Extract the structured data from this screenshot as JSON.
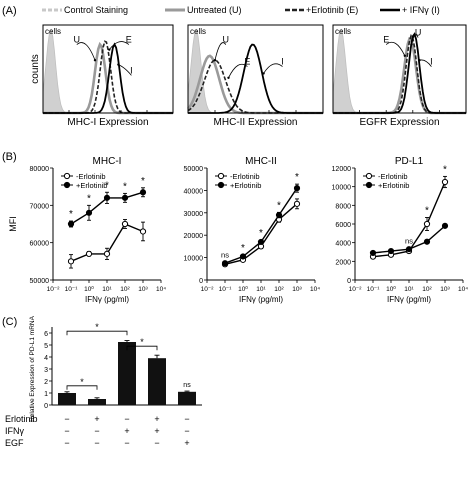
{
  "panel_labels": {
    "a": "(A)",
    "b": "(B)",
    "c": "(C)"
  },
  "legend_a": {
    "control": "Control Staining",
    "untreated": "Untreated (U)",
    "erlotinib": "+Erlotinib (E)",
    "ifng": "+ IFNγ (I)"
  },
  "colors": {
    "control_fill": "#d0d0d0",
    "untreated": "#9a9a9a",
    "erlotinib": "#222222",
    "ifng": "#000000",
    "bar": "#111111"
  },
  "chart_data": [
    {
      "type": "area",
      "panel": "A1",
      "xlabel": "MHC-I Expression",
      "ylabel": "counts",
      "tag": "cells",
      "log_decades": 5,
      "series": [
        {
          "name": "Control Staining",
          "key": "control",
          "peak_log": 0.3,
          "width": 0.18,
          "height": 0.95
        },
        {
          "name": "Untreated (U)",
          "key": "untreated",
          "peak_log": 2.2,
          "width": 0.2,
          "height": 0.78
        },
        {
          "name": "+Erlotinib (E)",
          "key": "erlotinib",
          "peak_log": 2.4,
          "width": 0.2,
          "height": 0.82
        },
        {
          "name": "+ IFNγ (I)",
          "key": "ifng",
          "peak_log": 2.75,
          "width": 0.2,
          "height": 0.78
        }
      ],
      "annotations": [
        {
          "text": "U",
          "x_log": 1.3,
          "y": 0.8,
          "arrow_x_log": 2.0,
          "arrow_y": 0.6
        },
        {
          "text": "E",
          "x_log": 3.3,
          "y": 0.8,
          "arrow_x_log": 2.55,
          "arrow_y": 0.72
        },
        {
          "text": "I",
          "x_log": 3.4,
          "y": 0.45,
          "arrow_x_log": 2.9,
          "arrow_y": 0.55
        }
      ]
    },
    {
      "type": "area",
      "panel": "A2",
      "xlabel": "MHC-II Expression",
      "tag": "cells",
      "log_decades": 5,
      "series": [
        {
          "name": "Control Staining",
          "key": "control",
          "peak_log": 0.3,
          "width": 0.18,
          "height": 0.95
        },
        {
          "name": "Untreated (U)",
          "key": "untreated",
          "peak_log": 0.8,
          "width": 0.35,
          "height": 0.65
        },
        {
          "name": "+Erlotinib (E)",
          "key": "erlotinib",
          "peak_log": 1.0,
          "width": 0.4,
          "height": 0.6
        },
        {
          "name": "+ IFNγ (I)",
          "key": "ifng",
          "peak_log": 2.4,
          "width": 0.33,
          "height": 0.78
        }
      ],
      "annotations": [
        {
          "text": "U",
          "x_log": 1.4,
          "y": 0.8,
          "arrow_x_log": 1.0,
          "arrow_y": 0.6
        },
        {
          "text": "E",
          "x_log": 2.2,
          "y": 0.55,
          "arrow_x_log": 1.5,
          "arrow_y": 0.4
        },
        {
          "text": "I",
          "x_log": 3.5,
          "y": 0.55,
          "arrow_x_log": 2.8,
          "arrow_y": 0.45
        }
      ]
    },
    {
      "type": "area",
      "panel": "A3",
      "xlabel": "EGFR Expression",
      "tag": "cells",
      "log_decades": 5,
      "series": [
        {
          "name": "Control Staining",
          "key": "control",
          "peak_log": 0.3,
          "width": 0.18,
          "height": 0.95
        },
        {
          "name": "Untreated (U)",
          "key": "untreated",
          "peak_log": 2.9,
          "width": 0.22,
          "height": 0.85
        },
        {
          "name": "+Erlotinib (E)",
          "key": "erlotinib",
          "peak_log": 2.95,
          "width": 0.2,
          "height": 0.88
        },
        {
          "name": "+ IFNγ (I)",
          "key": "ifng",
          "peak_log": 3.05,
          "width": 0.2,
          "height": 0.9
        }
      ],
      "annotations": [
        {
          "text": "E",
          "x_log": 2.0,
          "y": 0.8,
          "arrow_x_log": 2.7,
          "arrow_y": 0.65
        },
        {
          "text": "U",
          "x_log": 3.2,
          "y": 0.88,
          "arrow_x_log": 2.95,
          "arrow_y": 0.78
        },
        {
          "text": "I",
          "x_log": 3.7,
          "y": 0.55,
          "arrow_x_log": 3.25,
          "arrow_y": 0.6
        }
      ]
    },
    {
      "type": "line",
      "panel": "B1",
      "title": "MHC-I",
      "xlabel": "IFNγ (pg/ml)",
      "ylabel": "MFI",
      "xscale": "log",
      "x_ticks": [
        "10⁻²",
        "10⁻¹",
        "10⁰",
        "10¹",
        "10²",
        "10³",
        "10⁴"
      ],
      "xlim_exp": [
        -2,
        4
      ],
      "ylim": [
        50000,
        80000
      ],
      "y_ticks": [
        "50000",
        "60000",
        "70000",
        "80000"
      ],
      "x_exp": [
        -1,
        0,
        1,
        2,
        3
      ],
      "series": [
        {
          "name": "-Erlotinib",
          "marker": "open",
          "values": [
            55000,
            57000,
            57000,
            65000,
            63000
          ],
          "err": [
            1800,
            600,
            1500,
            1200,
            2500
          ]
        },
        {
          "name": "+Erlotinib",
          "marker": "filled",
          "values": [
            65000,
            68000,
            72000,
            72000,
            73500
          ],
          "err": [
            800,
            2000,
            1500,
            1200,
            1200
          ]
        }
      ],
      "sig": [
        {
          "x_exp": -1,
          "text": "*"
        },
        {
          "x_exp": 0,
          "text": "*"
        },
        {
          "x_exp": 1,
          "text": "*"
        },
        {
          "x_exp": 2,
          "text": "*"
        },
        {
          "x_exp": 3,
          "text": "*"
        }
      ]
    },
    {
      "type": "line",
      "panel": "B2",
      "title": "MHC-II",
      "xlabel": "IFNγ (pg/ml)",
      "xscale": "log",
      "x_ticks": [
        "10⁻²",
        "10⁻¹",
        "10⁰",
        "10¹",
        "10²",
        "10³",
        "10⁴"
      ],
      "xlim_exp": [
        -2,
        4
      ],
      "ylim": [
        0,
        50000
      ],
      "y_ticks": [
        "0",
        "10000",
        "20000",
        "30000",
        "40000",
        "50000"
      ],
      "x_exp": [
        -1,
        0,
        1,
        2,
        3
      ],
      "series": [
        {
          "name": "-Erlotinib",
          "marker": "open",
          "values": [
            7000,
            9000,
            15000,
            27000,
            34000
          ],
          "err": [
            700,
            700,
            900,
            1200,
            2200
          ]
        },
        {
          "name": "+Erlotinib",
          "marker": "filled",
          "values": [
            7500,
            10500,
            17000,
            29000,
            41000
          ],
          "err": [
            700,
            700,
            900,
            1200,
            1800
          ]
        }
      ],
      "sig": [
        {
          "x_exp": -1,
          "text": "ns"
        },
        {
          "x_exp": 0,
          "text": "*"
        },
        {
          "x_exp": 1,
          "text": "*"
        },
        {
          "x_exp": 2,
          "text": "*"
        },
        {
          "x_exp": 3,
          "text": "*"
        }
      ]
    },
    {
      "type": "line",
      "panel": "B3",
      "title": "PD-L1",
      "xlabel": "IFNγ (pg/ml)",
      "xscale": "log",
      "x_ticks": [
        "10⁻²",
        "10⁻¹",
        "10⁰",
        "10¹",
        "10²",
        "10³",
        "10⁴"
      ],
      "xlim_exp": [
        -2,
        4
      ],
      "ylim": [
        0,
        12000
      ],
      "y_ticks": [
        "0",
        "2000",
        "4000",
        "6000",
        "8000",
        "10000",
        "12000"
      ],
      "x_exp": [
        -1,
        0,
        1,
        2,
        3
      ],
      "series": [
        {
          "name": "-Erlotinib",
          "marker": "open",
          "values": [
            2500,
            2700,
            3100,
            6000,
            10500
          ],
          "err": [
            150,
            150,
            200,
            700,
            600
          ]
        },
        {
          "name": "+Erlotinib",
          "marker": "filled",
          "values": [
            2900,
            3100,
            3300,
            4100,
            5800
          ],
          "err": [
            150,
            150,
            200,
            200,
            200
          ]
        }
      ],
      "sig": [
        {
          "x_exp": 1,
          "text": "ns"
        },
        {
          "x_exp": 2,
          "text": "*"
        },
        {
          "x_exp": 3,
          "text": "*"
        }
      ]
    },
    {
      "type": "bar",
      "panel": "C",
      "ylabel": "Relative Expression of PD-L1 mRNA",
      "ylim": [
        0,
        6
      ],
      "y_ticks": [
        "0",
        "1",
        "2",
        "3",
        "4",
        "5",
        "6"
      ],
      "row_labels": [
        "Erlotinib",
        "IFNγ",
        "EGF"
      ],
      "conditions": [
        {
          "erlotinib": "−",
          "ifng": "−",
          "egf": "−"
        },
        {
          "erlotinib": "+",
          "ifng": "−",
          "egf": "−"
        },
        {
          "erlotinib": "−",
          "ifng": "+",
          "egf": "−"
        },
        {
          "erlotinib": "+",
          "ifng": "+",
          "egf": "−"
        },
        {
          "erlotinib": "−",
          "ifng": "−",
          "egf": "+"
        }
      ],
      "values": [
        1.0,
        0.5,
        5.25,
        3.9,
        1.1
      ],
      "err": [
        0.1,
        0.1,
        0.12,
        0.25,
        0.06
      ],
      "brackets": [
        {
          "from": 0,
          "to": 1,
          "y": 1.6,
          "text": "*"
        },
        {
          "from": 0,
          "to": 2,
          "y": 6.15,
          "text": "*"
        },
        {
          "from": 2,
          "to": 3,
          "y": 4.9,
          "text": "*"
        }
      ],
      "bar_labels": [
        {
          "bar": 4,
          "text": "ns"
        }
      ]
    }
  ]
}
